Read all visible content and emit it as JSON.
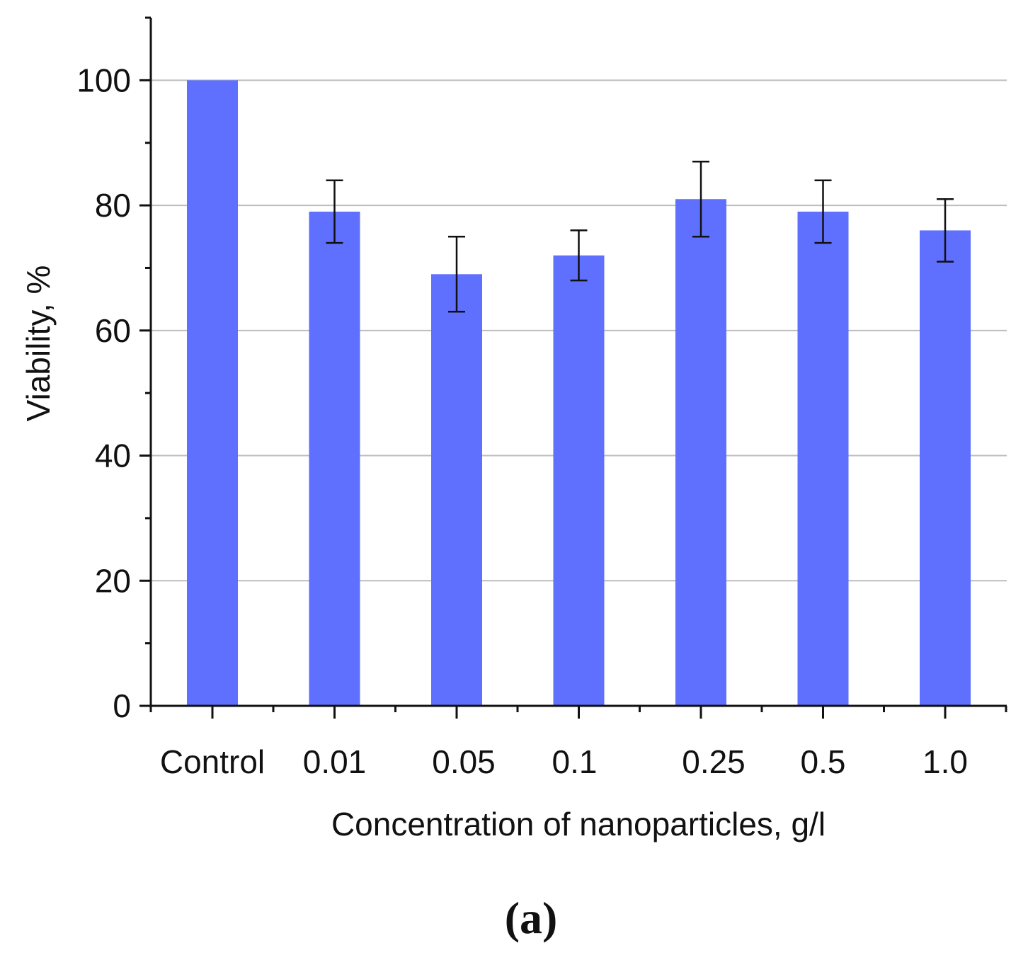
{
  "chart_data": {
    "type": "bar",
    "categories": [
      "Control",
      "0.01",
      "0.05",
      "0.1",
      "0.25",
      "0.5",
      "1.0"
    ],
    "values": [
      100,
      79,
      69,
      72,
      81,
      79,
      76
    ],
    "error_bars": [
      null,
      5,
      6,
      4,
      6,
      5,
      5
    ],
    "xlabel": "Concentration of nanoparticles, g/l",
    "ylabel": "Viability, %",
    "ylim": [
      0,
      110
    ],
    "yticks": [
      0,
      20,
      40,
      60,
      80,
      100
    ],
    "ytick_labels": [
      "0",
      "20",
      "40",
      "60",
      "80",
      "100"
    ],
    "grid": true,
    "bar_color": "#6070fe",
    "panel_label": "(a)"
  }
}
